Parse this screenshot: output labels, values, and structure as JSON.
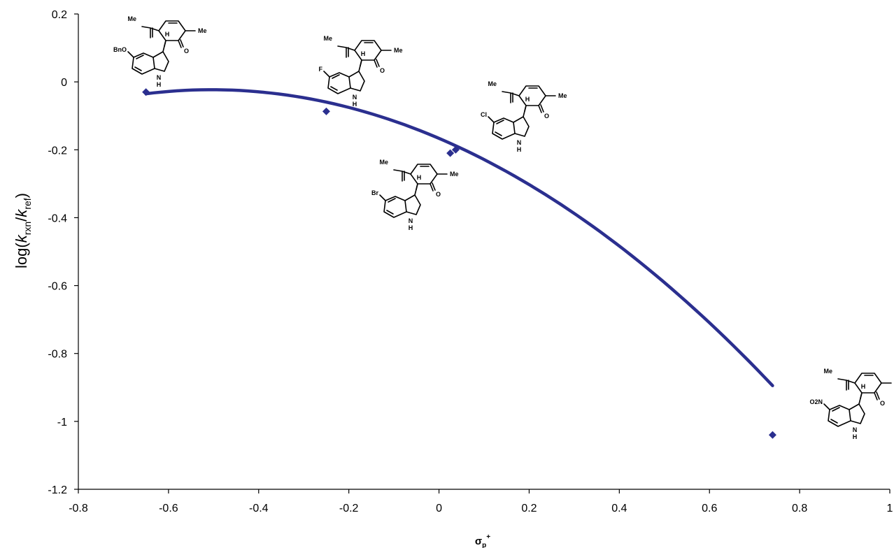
{
  "chart_data": {
    "type": "scatter",
    "title": "",
    "xlabel": {
      "base": "σ",
      "sub": "p",
      "sup": "+"
    },
    "ylabel": {
      "prefix": "log(",
      "k1": "k",
      "sub1": "rxn",
      "slash": "/",
      "k2": "k",
      "sub2": "ref",
      "suffix": ")"
    },
    "xlim": [
      -0.8,
      1.0
    ],
    "ylim": [
      -1.2,
      0.2
    ],
    "x_ticks": [
      "-0.8",
      "-0.6",
      "-0.4",
      "-0.2",
      "0",
      "0.2",
      "0.4",
      "0.6",
      "0.8",
      "1"
    ],
    "y_ticks": [
      "0.2",
      "0",
      "-0.2",
      "-0.4",
      "-0.6",
      "-0.8",
      "-1",
      "-1.2"
    ],
    "grid": false,
    "series": [
      {
        "color": "#2b2f8f",
        "points": [
          {
            "x": -0.65,
            "y": -0.03
          },
          {
            "x": -0.25,
            "y": -0.087
          },
          {
            "x": 0.025,
            "y": -0.21
          },
          {
            "x": 0.037,
            "y": -0.2
          },
          {
            "x": 0.74,
            "y": -1.04
          }
        ]
      }
    ],
    "trendline": {
      "type": "quadratic",
      "x_range": [
        -0.65,
        0.74
      ],
      "coefficients": {
        "a": -0.5626,
        "b": -0.5679,
        "c": -0.1664
      }
    },
    "annotations": [
      {
        "substituent": "BnO",
        "labels": [
          "Me",
          "Me",
          "H",
          "O",
          "N",
          "H"
        ]
      },
      {
        "substituent": "F",
        "labels": [
          "Me",
          "Me",
          "H",
          "O",
          "N",
          "H"
        ]
      },
      {
        "substituent": "Cl",
        "labels": [
          "Me",
          "Me",
          "H",
          "O",
          "N",
          "H"
        ]
      },
      {
        "substituent": "Br",
        "labels": [
          "Me",
          "Me",
          "H",
          "O",
          "N",
          "H"
        ]
      },
      {
        "substituent": "O2N",
        "labels": [
          "Me",
          "Me",
          "H",
          "O",
          "N",
          "H"
        ]
      }
    ]
  }
}
